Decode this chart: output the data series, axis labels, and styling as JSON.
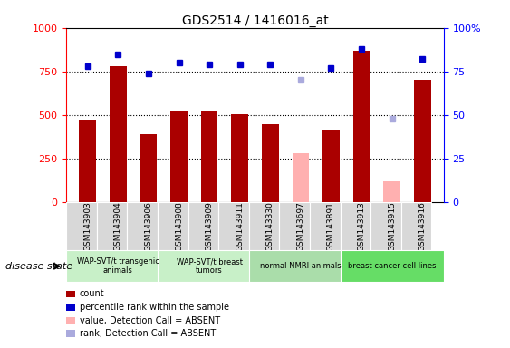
{
  "title": "GDS2514 / 1416016_at",
  "samples": [
    "GSM143903",
    "GSM143904",
    "GSM143906",
    "GSM143908",
    "GSM143909",
    "GSM143911",
    "GSM143330",
    "GSM143697",
    "GSM143891",
    "GSM143913",
    "GSM143915",
    "GSM143916"
  ],
  "count_values": [
    470,
    780,
    390,
    520,
    520,
    505,
    445,
    null,
    415,
    870,
    null,
    700
  ],
  "count_absent": [
    null,
    null,
    null,
    null,
    null,
    null,
    null,
    280,
    null,
    null,
    120,
    null
  ],
  "rank_values": [
    78,
    85,
    74,
    80,
    79,
    79,
    79,
    null,
    77,
    88,
    null,
    82
  ],
  "rank_absent": [
    null,
    null,
    null,
    null,
    null,
    null,
    null,
    70,
    null,
    null,
    48,
    null
  ],
  "groups": [
    {
      "label": "WAP-SVT/t transgenic\nanimals",
      "start": 0,
      "end": 3,
      "color": "#c8f0c8"
    },
    {
      "label": "WAP-SVT/t breast\ntumors",
      "start": 3,
      "end": 6,
      "color": "#c8f0c8"
    },
    {
      "label": "normal NMRI animals",
      "start": 6,
      "end": 9,
      "color": "#aaddaa"
    },
    {
      "label": "breast cancer cell lines",
      "start": 9,
      "end": 12,
      "color": "#66dd66"
    }
  ],
  "bar_color": "#aa0000",
  "bar_absent_color": "#ffb0b0",
  "rank_color": "#0000cc",
  "rank_absent_color": "#aaaadd",
  "ylim_left": [
    0,
    1000
  ],
  "ylim_right": [
    0,
    100
  ],
  "yticks_left": [
    0,
    250,
    500,
    750,
    1000
  ],
  "yticks_right": [
    0,
    25,
    50,
    75,
    100
  ],
  "ytick_labels_left": [
    "0",
    "250",
    "500",
    "750",
    "1000"
  ],
  "ytick_labels_right": [
    "0",
    "25",
    "50",
    "75",
    "100%"
  ],
  "disease_state_label": "disease state",
  "legend_items": [
    {
      "label": "count",
      "color": "#aa0000"
    },
    {
      "label": "percentile rank within the sample",
      "color": "#0000cc"
    },
    {
      "label": "value, Detection Call = ABSENT",
      "color": "#ffb0b0"
    },
    {
      "label": "rank, Detection Call = ABSENT",
      "color": "#aaaadd"
    }
  ]
}
